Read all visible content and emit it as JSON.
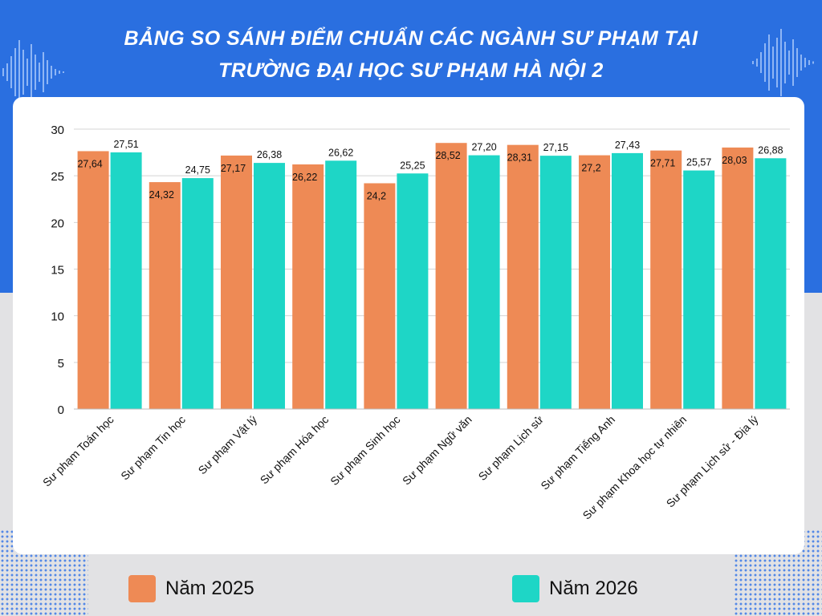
{
  "header": {
    "title_line1": "BẢNG SO SÁNH ĐIỂM CHUẨN CÁC NGÀNH SƯ PHẠM TẠI",
    "title_line2": "TRƯỜNG ĐẠI HỌC SƯ PHẠM HÀ NỘI 2"
  },
  "legend": [
    {
      "label": "Năm 2025",
      "color": "#ee8a55"
    },
    {
      "label": "Năm 2026",
      "color": "#1ed6c6"
    }
  ],
  "chart_data": {
    "type": "bar",
    "title": "BẢNG SO SÁNH ĐIỂM CHUẨN CÁC NGÀNH SƯ PHẠM TẠI TRƯỜNG ĐẠI HỌC SƯ PHẠM HÀ NỘI 2",
    "xlabel": "",
    "ylabel": "",
    "ylim": [
      0,
      30
    ],
    "yticks": [
      0,
      5,
      10,
      15,
      20,
      25,
      30
    ],
    "grid": true,
    "legend_position": "bottom",
    "categories": [
      "Sư phạm Toán học",
      "Sư phạm Tin học",
      "Sư phạm Vật lý",
      "Sư phạm Hóa học",
      "Sư phạm Sinh học",
      "Sư phạm Ngữ văn",
      "Sư phạm Lịch sử",
      "Sư phạm Tiếng Anh",
      "Sư phạm Khoa học tự nhiên",
      "Sư phạm Lịch sử - Địa lý"
    ],
    "series": [
      {
        "name": "Năm 2025",
        "color": "#ee8a55",
        "values": [
          27.64,
          24.32,
          27.17,
          26.22,
          24.2,
          28.52,
          28.31,
          27.2,
          27.71,
          28.03
        ],
        "labels": [
          "27,64",
          "24,32",
          "27,17",
          "26,22",
          "24,2",
          "28,52",
          "28,31",
          "27,2",
          "27,71",
          "28,03"
        ]
      },
      {
        "name": "Năm 2026",
        "color": "#1ed6c6",
        "values": [
          27.51,
          24.75,
          26.38,
          26.62,
          25.25,
          27.2,
          27.15,
          27.43,
          25.57,
          26.88
        ],
        "labels": [
          "27,51",
          "24,75",
          "26,38",
          "26,62",
          "25,25",
          "27,20",
          "27,15",
          "27,43",
          "25,57",
          "26,88"
        ]
      }
    ]
  }
}
